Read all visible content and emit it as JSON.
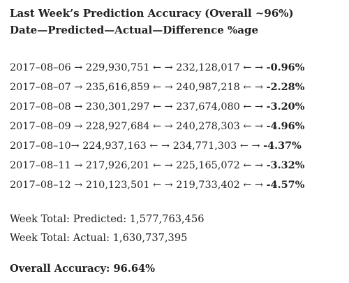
{
  "header": {
    "title": "Last Week’s Prediction Accuracy (Overall ~96%)",
    "subtitle": "Date—Predicted—Actual—Difference %age"
  },
  "rows": [
    {
      "date": "2017–08–06",
      "sep1": " → ",
      "predicted": "229,930,751",
      "sep2": " ← → ",
      "actual": "232,128,017",
      "sep3": " ← → ",
      "diff": "-0.96%"
    },
    {
      "date": "2017–08–07",
      "sep1": " → ",
      "predicted": "235,616,859",
      "sep2": " ← → ",
      "actual": "240,987,218",
      "sep3": " ← → ",
      "diff": "-2.28%"
    },
    {
      "date": "2017–08–08",
      "sep1": " → ",
      "predicted": "230,301,297",
      "sep2": " ← → ",
      "actual": "237,674,080",
      "sep3": " ← → ",
      "diff": "-3.20%"
    },
    {
      "date": "2017–08–09",
      "sep1": " → ",
      "predicted": "228,927,684",
      "sep2": " ← → ",
      "actual": "240,278,303",
      "sep3": " ← → ",
      "diff": "-4.96%"
    },
    {
      "date": "2017–08–10",
      "sep1": "→ ",
      "predicted": "224,937,163",
      "sep2": " ← → ",
      "actual": "234,771,303",
      "sep3": " ← → ",
      "diff": "-4.37%"
    },
    {
      "date": "2017–08–11",
      "sep1": " → ",
      "predicted": "217,926,201",
      "sep2": " ← → ",
      "actual": "225,165,072",
      "sep3": " ← → ",
      "diff": "-3.32%"
    },
    {
      "date": "2017–08–12",
      "sep1": " → ",
      "predicted": "210,123,501",
      "sep2": " ← → ",
      "actual": "219,733,402",
      "sep3": " ← → ",
      "diff": "-4.57%"
    }
  ],
  "totals": {
    "predicted_line": "Week Total: Predicted: 1,577,763,456",
    "actual_line": "Week Total: Actual: 1,630,737,395"
  },
  "summary": {
    "overall_accuracy": "Overall Accuracy: 96.64%"
  }
}
